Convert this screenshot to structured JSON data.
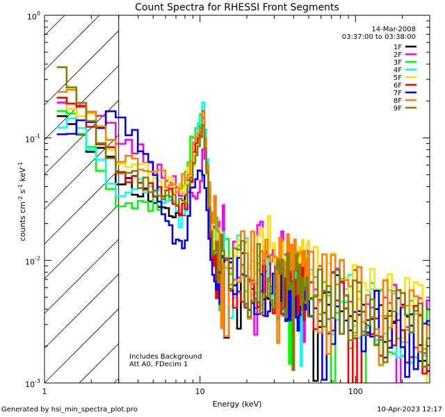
{
  "chart_data": {
    "type": "line",
    "style": "step",
    "title": "Count Spectra for RHESSI Front Segments",
    "xlabel": "Energy (keV)",
    "ylabel": "counts cm-2 s-1 keV-1",
    "xscale": "log",
    "yscale": "log",
    "xlim": [
      1,
      300
    ],
    "ylim": [
      0.001,
      1
    ],
    "x_ticks": [
      {
        "value": 1,
        "label": "1"
      },
      {
        "value": 10,
        "label": "10"
      },
      {
        "value": 100,
        "label": "100"
      }
    ],
    "y_ticks": [
      {
        "value": 1,
        "label": "10",
        "exp": "0"
      },
      {
        "value": 0.1,
        "label": "10",
        "exp": "-1"
      },
      {
        "value": 0.01,
        "label": "10",
        "exp": "-2"
      },
      {
        "value": 0.001,
        "label": "10",
        "exp": "-3"
      }
    ],
    "hatched_region": {
      "from": 1,
      "to": 3
    },
    "annotation_date": "14-Mar-2008",
    "annotation_time": "03:37:00 to 03:38:00",
    "annotation_bg": "Includes Background",
    "annotation_att": "Att A0, FDecim 1",
    "series": [
      {
        "name": "1F",
        "color": "#000000",
        "seed": 11,
        "values": [
          [
            1.2,
            0.18
          ],
          [
            1.5,
            0.14
          ],
          [
            2,
            0.09
          ],
          [
            2.5,
            0.07
          ],
          [
            3,
            0.05
          ],
          [
            4,
            0.038
          ],
          [
            5,
            0.032
          ],
          [
            6,
            0.026
          ],
          [
            7,
            0.022
          ],
          [
            8,
            0.028
          ],
          [
            9,
            0.06
          ],
          [
            10,
            0.11
          ],
          [
            10.5,
            0.15
          ],
          [
            11,
            0.08
          ],
          [
            12,
            0.012
          ],
          [
            15,
            0.009
          ],
          [
            20,
            0.008
          ],
          [
            30,
            0.007
          ],
          [
            40,
            0.006
          ],
          [
            60,
            0.005
          ],
          [
            100,
            0.004
          ],
          [
            150,
            0.003
          ],
          [
            200,
            0.0028
          ],
          [
            280,
            0.002
          ]
        ]
      },
      {
        "name": "2F",
        "color": "#ff00ff",
        "seed": 23,
        "values": [
          [
            1.2,
            0.22
          ],
          [
            1.5,
            0.2
          ],
          [
            2,
            0.16
          ],
          [
            2.5,
            0.13
          ],
          [
            3,
            0.1
          ],
          [
            4,
            0.08
          ],
          [
            5,
            0.06
          ],
          [
            6,
            0.05
          ],
          [
            7,
            0.045
          ],
          [
            8,
            0.035
          ],
          [
            9,
            0.03
          ],
          [
            10,
            0.035
          ],
          [
            10.5,
            0.09
          ],
          [
            11,
            0.06
          ],
          [
            12,
            0.02
          ],
          [
            15,
            0.014
          ],
          [
            20,
            0.012
          ],
          [
            30,
            0.01
          ],
          [
            40,
            0.008
          ],
          [
            60,
            0.006
          ],
          [
            100,
            0.005
          ],
          [
            150,
            0.004
          ],
          [
            200,
            0.0035
          ],
          [
            280,
            0.003
          ]
        ]
      },
      {
        "name": "3F",
        "color": "#00ff00",
        "seed": 37,
        "values": [
          [
            1.2,
            0.2
          ],
          [
            1.5,
            0.15
          ],
          [
            2,
            0.1
          ],
          [
            2.5,
            0.05
          ],
          [
            3,
            0.03
          ],
          [
            4,
            0.028
          ],
          [
            5,
            0.03
          ],
          [
            6,
            0.03
          ],
          [
            7,
            0.035
          ],
          [
            8,
            0.05
          ],
          [
            9,
            0.1
          ],
          [
            10,
            0.14
          ],
          [
            10.5,
            0.15
          ],
          [
            11,
            0.07
          ],
          [
            12,
            0.02
          ],
          [
            15,
            0.01
          ],
          [
            20,
            0.009
          ],
          [
            30,
            0.008
          ],
          [
            40,
            0.007
          ],
          [
            60,
            0.0055
          ],
          [
            100,
            0.0045
          ],
          [
            150,
            0.0035
          ],
          [
            200,
            0.003
          ],
          [
            280,
            0.0025
          ]
        ]
      },
      {
        "name": "4F",
        "color": "#00ffff",
        "seed": 41,
        "values": [
          [
            1.2,
            0.14
          ],
          [
            1.5,
            0.12
          ],
          [
            2,
            0.09
          ],
          [
            2.5,
            0.05
          ],
          [
            3,
            0.04
          ],
          [
            4,
            0.04
          ],
          [
            5,
            0.035
          ],
          [
            6,
            0.03
          ],
          [
            7,
            0.025
          ],
          [
            8,
            0.02
          ],
          [
            9,
            0.07
          ],
          [
            10,
            0.15
          ],
          [
            10.5,
            0.19
          ],
          [
            11,
            0.09
          ],
          [
            12,
            0.014
          ],
          [
            15,
            0.01
          ],
          [
            20,
            0.008
          ],
          [
            30,
            0.007
          ],
          [
            40,
            0.006
          ],
          [
            60,
            0.005
          ],
          [
            100,
            0.004
          ],
          [
            150,
            0.0032
          ],
          [
            200,
            0.0028
          ],
          [
            280,
            0.0022
          ]
        ]
      },
      {
        "name": "5F",
        "color": "#ffe000",
        "seed": 53,
        "values": [
          [
            1.2,
            0.25
          ],
          [
            1.5,
            0.2
          ],
          [
            2,
            0.15
          ],
          [
            2.5,
            0.1
          ],
          [
            3,
            0.07
          ],
          [
            4,
            0.06
          ],
          [
            5,
            0.05
          ],
          [
            6,
            0.045
          ],
          [
            7,
            0.04
          ],
          [
            8,
            0.04
          ],
          [
            9,
            0.06
          ],
          [
            10,
            0.1
          ],
          [
            10.5,
            0.13
          ],
          [
            11,
            0.06
          ],
          [
            12,
            0.018
          ],
          [
            15,
            0.014
          ],
          [
            20,
            0.013
          ],
          [
            30,
            0.012
          ],
          [
            40,
            0.01
          ],
          [
            60,
            0.008
          ],
          [
            100,
            0.006
          ],
          [
            150,
            0.005
          ],
          [
            200,
            0.004
          ],
          [
            280,
            0.0035
          ]
        ]
      },
      {
        "name": "6F",
        "color": "#ff0000",
        "seed": 67,
        "values": [
          [
            1.2,
            0.25
          ],
          [
            1.5,
            0.2
          ],
          [
            2,
            0.14
          ],
          [
            2.5,
            0.09
          ],
          [
            3,
            0.06
          ],
          [
            4,
            0.045
          ],
          [
            5,
            0.04
          ],
          [
            6,
            0.035
          ],
          [
            7,
            0.03
          ],
          [
            8,
            0.025
          ],
          [
            9,
            0.06
          ],
          [
            10,
            0.12
          ],
          [
            10.5,
            0.16
          ],
          [
            11,
            0.07
          ],
          [
            12,
            0.01
          ],
          [
            15,
            0.008
          ],
          [
            20,
            0.007
          ],
          [
            30,
            0.006
          ],
          [
            40,
            0.0055
          ],
          [
            60,
            0.0045
          ],
          [
            100,
            0.0035
          ],
          [
            150,
            0.003
          ],
          [
            200,
            0.0027
          ],
          [
            280,
            0.0022
          ]
        ]
      },
      {
        "name": "7F",
        "color": "#0000ff",
        "seed": 79,
        "values": [
          [
            1.2,
            0.12
          ],
          [
            1.5,
            0.11
          ],
          [
            2,
            0.13
          ],
          [
            2.5,
            0.15
          ],
          [
            3,
            0.16
          ],
          [
            4,
            0.1
          ],
          [
            5,
            0.05
          ],
          [
            6,
            0.025
          ],
          [
            7,
            0.012
          ],
          [
            8,
            0.015
          ],
          [
            9,
            0.04
          ],
          [
            10,
            0.06
          ],
          [
            10.5,
            0.05
          ],
          [
            11,
            0.03
          ],
          [
            12,
            0.008
          ],
          [
            15,
            0.007
          ],
          [
            20,
            0.006
          ],
          [
            30,
            0.006
          ],
          [
            40,
            0.005
          ],
          [
            60,
            0.0042
          ],
          [
            100,
            0.0035
          ],
          [
            150,
            0.003
          ],
          [
            200,
            0.0026
          ],
          [
            280,
            0.002
          ]
        ]
      },
      {
        "name": "8F",
        "color": "#ff8000",
        "seed": 83,
        "values": [
          [
            1.2,
            0.28
          ],
          [
            1.5,
            0.22
          ],
          [
            2,
            0.15
          ],
          [
            2.5,
            0.1
          ],
          [
            3,
            0.075
          ],
          [
            4,
            0.06
          ],
          [
            5,
            0.05
          ],
          [
            6,
            0.045
          ],
          [
            7,
            0.04
          ],
          [
            8,
            0.045
          ],
          [
            9,
            0.08
          ],
          [
            10,
            0.11
          ],
          [
            10.5,
            0.16
          ],
          [
            11,
            0.08
          ],
          [
            12,
            0.02
          ],
          [
            15,
            0.012
          ],
          [
            20,
            0.011
          ],
          [
            30,
            0.01
          ],
          [
            40,
            0.009
          ],
          [
            60,
            0.007
          ],
          [
            100,
            0.005
          ],
          [
            150,
            0.0045
          ],
          [
            200,
            0.004
          ],
          [
            280,
            0.0032
          ]
        ]
      },
      {
        "name": "9F",
        "color": "#808000",
        "seed": 97,
        "values": [
          [
            1.2,
            0.48
          ],
          [
            1.5,
            0.3
          ],
          [
            2,
            0.15
          ],
          [
            2.5,
            0.09
          ],
          [
            3,
            0.06
          ],
          [
            4,
            0.045
          ],
          [
            5,
            0.04
          ],
          [
            6,
            0.035
          ],
          [
            7,
            0.03
          ],
          [
            8,
            0.03
          ],
          [
            9,
            0.06
          ],
          [
            10,
            0.1
          ],
          [
            10.5,
            0.14
          ],
          [
            11,
            0.07
          ],
          [
            12,
            0.012
          ],
          [
            15,
            0.009
          ],
          [
            20,
            0.008
          ],
          [
            30,
            0.007
          ],
          [
            40,
            0.006
          ],
          [
            60,
            0.005
          ],
          [
            100,
            0.004
          ],
          [
            150,
            0.0034
          ],
          [
            200,
            0.003
          ],
          [
            280,
            0.0025
          ]
        ]
      }
    ]
  },
  "footer": {
    "left": "Generated by hsi_min_spectra_plot.pro",
    "right": "10-Apr-2023 12:17"
  }
}
